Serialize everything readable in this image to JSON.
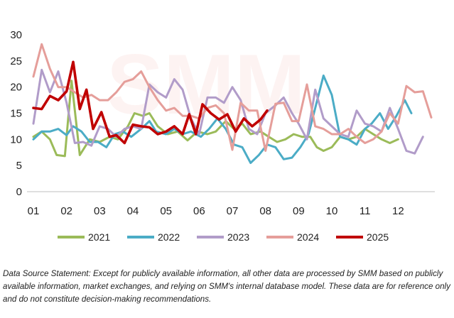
{
  "chart_data": {
    "type": "line",
    "title": "",
    "xlabel": "",
    "ylabel": "",
    "ylim": [
      0,
      30
    ],
    "yticks": [
      0,
      5,
      10,
      15,
      20,
      25,
      30
    ],
    "xlim": [
      1,
      13
    ],
    "xticks": [
      "01",
      "02",
      "03",
      "04",
      "05",
      "06",
      "07",
      "08",
      "09",
      "10",
      "11",
      "12"
    ],
    "grid": false,
    "legend_position": "bottom",
    "series": [
      {
        "name": "2021",
        "color": "#9bbb59",
        "points": [
          [
            1.0,
            10.5
          ],
          [
            1.25,
            11.5
          ],
          [
            1.5,
            10.0
          ],
          [
            1.7,
            7.0
          ],
          [
            1.95,
            6.8
          ],
          [
            2.15,
            21.2
          ],
          [
            2.4,
            7.0
          ],
          [
            2.7,
            10.0
          ],
          [
            3.0,
            9.5
          ],
          [
            3.3,
            10.5
          ],
          [
            3.55,
            10.0
          ],
          [
            3.85,
            12.5
          ],
          [
            4.05,
            15.0
          ],
          [
            4.3,
            14.5
          ],
          [
            4.5,
            15.0
          ],
          [
            4.75,
            12.5
          ],
          [
            5.05,
            11.0
          ],
          [
            5.35,
            11.5
          ],
          [
            5.65,
            9.8
          ],
          [
            5.95,
            11.5
          ],
          [
            6.25,
            11.0
          ],
          [
            6.5,
            11.5
          ],
          [
            6.8,
            13.5
          ],
          [
            7.05,
            12.0
          ],
          [
            7.3,
            13.0
          ],
          [
            7.55,
            11.0
          ],
          [
            7.85,
            11.5
          ],
          [
            8.1,
            10.5
          ],
          [
            8.35,
            9.5
          ],
          [
            8.6,
            10.0
          ],
          [
            8.85,
            11.0
          ],
          [
            9.1,
            10.5
          ],
          [
            9.35,
            10.5
          ],
          [
            9.55,
            8.5
          ],
          [
            9.75,
            7.8
          ],
          [
            10.0,
            8.5
          ],
          [
            10.25,
            10.5
          ],
          [
            10.5,
            10.0
          ],
          [
            10.75,
            10.5
          ],
          [
            11.0,
            12.0
          ],
          [
            11.25,
            11.0
          ],
          [
            11.5,
            10.0
          ],
          [
            11.75,
            9.3
          ],
          [
            12.0,
            10.0
          ]
        ]
      },
      {
        "name": "2022",
        "color": "#4bacc6",
        "points": [
          [
            1.0,
            10.0
          ],
          [
            1.25,
            11.5
          ],
          [
            1.5,
            11.5
          ],
          [
            1.75,
            12.0
          ],
          [
            2.0,
            10.8
          ],
          [
            2.2,
            12.5
          ],
          [
            2.45,
            11.5
          ],
          [
            2.7,
            9.5
          ],
          [
            2.95,
            9.5
          ],
          [
            3.2,
            8.5
          ],
          [
            3.45,
            11.0
          ],
          [
            3.7,
            11.5
          ],
          [
            3.95,
            10.5
          ],
          [
            4.25,
            12.0
          ],
          [
            4.5,
            13.5
          ],
          [
            4.7,
            11.5
          ],
          [
            5.0,
            11.0
          ],
          [
            5.25,
            12.0
          ],
          [
            5.5,
            11.0
          ],
          [
            5.75,
            11.5
          ],
          [
            6.05,
            10.5
          ],
          [
            6.3,
            12.0
          ],
          [
            6.55,
            14.0
          ],
          [
            6.8,
            12.0
          ],
          [
            7.05,
            9.0
          ],
          [
            7.3,
            8.5
          ],
          [
            7.55,
            5.5
          ],
          [
            7.8,
            7.0
          ],
          [
            8.05,
            9.0
          ],
          [
            8.3,
            8.5
          ],
          [
            8.55,
            6.2
          ],
          [
            8.8,
            6.5
          ],
          [
            9.05,
            8.5
          ],
          [
            9.3,
            11.0
          ],
          [
            9.5,
            16.0
          ],
          [
            9.75,
            22.2
          ],
          [
            10.0,
            18.5
          ],
          [
            10.25,
            10.5
          ],
          [
            10.5,
            10.0
          ],
          [
            10.75,
            9.0
          ],
          [
            11.0,
            12.0
          ],
          [
            11.2,
            13.0
          ],
          [
            11.45,
            15.0
          ],
          [
            11.7,
            12.0
          ],
          [
            11.95,
            14.5
          ],
          [
            12.2,
            17.5
          ],
          [
            12.4,
            15.0
          ]
        ]
      },
      {
        "name": "2023",
        "color": "#b19cc9",
        "points": [
          [
            1.0,
            13.0
          ],
          [
            1.25,
            23.3
          ],
          [
            1.5,
            19.0
          ],
          [
            1.75,
            23.0
          ],
          [
            2.0,
            17.0
          ],
          [
            2.25,
            9.3
          ],
          [
            2.5,
            9.5
          ],
          [
            2.75,
            8.8
          ],
          [
            3.0,
            12.5
          ],
          [
            3.25,
            12.0
          ],
          [
            3.5,
            10.5
          ],
          [
            3.75,
            12.0
          ],
          [
            4.0,
            12.5
          ],
          [
            4.25,
            12.0
          ],
          [
            4.5,
            20.5
          ],
          [
            4.75,
            19.0
          ],
          [
            5.0,
            18.0
          ],
          [
            5.25,
            21.5
          ],
          [
            5.5,
            19.5
          ],
          [
            5.75,
            14.0
          ],
          [
            6.0,
            11.0
          ],
          [
            6.25,
            18.0
          ],
          [
            6.5,
            18.0
          ],
          [
            6.75,
            17.0
          ],
          [
            7.0,
            20.0
          ],
          [
            7.25,
            17.5
          ],
          [
            7.5,
            12.0
          ],
          [
            7.75,
            11.0
          ],
          [
            8.0,
            15.0
          ],
          [
            8.3,
            16.5
          ],
          [
            8.55,
            18.0
          ],
          [
            8.8,
            15.0
          ],
          [
            9.0,
            13.0
          ],
          [
            9.25,
            10.0
          ],
          [
            9.5,
            19.5
          ],
          [
            9.75,
            14.0
          ],
          [
            10.0,
            12.5
          ],
          [
            10.25,
            11.0
          ],
          [
            10.5,
            10.5
          ],
          [
            10.75,
            15.5
          ],
          [
            11.0,
            13.0
          ],
          [
            11.25,
            12.5
          ],
          [
            11.5,
            11.5
          ],
          [
            11.75,
            16.0
          ],
          [
            12.0,
            12.0
          ],
          [
            12.25,
            7.8
          ],
          [
            12.5,
            7.3
          ],
          [
            12.75,
            10.5
          ]
        ]
      },
      {
        "name": "2024",
        "color": "#e59e9a",
        "points": [
          [
            1.0,
            22.0
          ],
          [
            1.25,
            28.2
          ],
          [
            1.5,
            23.5
          ],
          [
            1.75,
            20.0
          ],
          [
            2.0,
            20.0
          ],
          [
            2.25,
            19.0
          ],
          [
            2.5,
            18.0
          ],
          [
            2.75,
            18.5
          ],
          [
            3.0,
            17.5
          ],
          [
            3.25,
            17.5
          ],
          [
            3.5,
            19.0
          ],
          [
            3.75,
            21.0
          ],
          [
            4.0,
            21.5
          ],
          [
            4.25,
            23.0
          ],
          [
            4.5,
            20.0
          ],
          [
            4.75,
            17.5
          ],
          [
            5.0,
            15.5
          ],
          [
            5.25,
            16.0
          ],
          [
            5.5,
            14.5
          ],
          [
            5.75,
            14.5
          ],
          [
            6.0,
            14.0
          ],
          [
            6.25,
            16.0
          ],
          [
            6.5,
            16.5
          ],
          [
            6.75,
            15.0
          ],
          [
            7.0,
            8.0
          ],
          [
            7.25,
            17.0
          ],
          [
            7.5,
            15.5
          ],
          [
            7.75,
            15.5
          ],
          [
            8.0,
            7.8
          ],
          [
            8.3,
            16.8
          ],
          [
            8.55,
            17.0
          ],
          [
            8.8,
            13.5
          ],
          [
            9.0,
            13.5
          ],
          [
            9.25,
            20.5
          ],
          [
            9.5,
            12.5
          ],
          [
            9.75,
            12.0
          ],
          [
            10.0,
            11.0
          ],
          [
            10.25,
            11.0
          ],
          [
            10.5,
            12.0
          ],
          [
            10.75,
            10.5
          ],
          [
            11.0,
            9.3
          ],
          [
            11.25,
            10.0
          ],
          [
            11.5,
            11.5
          ],
          [
            11.75,
            15.0
          ],
          [
            12.0,
            13.0
          ],
          [
            12.25,
            20.2
          ],
          [
            12.5,
            19.0
          ],
          [
            12.75,
            19.2
          ],
          [
            13.0,
            14.2
          ]
        ]
      },
      {
        "name": "2025",
        "color": "#c00000",
        "points": [
          [
            1.0,
            16.0
          ],
          [
            1.25,
            15.8
          ],
          [
            1.5,
            18.3
          ],
          [
            1.75,
            17.5
          ],
          [
            2.0,
            19.2
          ],
          [
            2.2,
            24.8
          ],
          [
            2.4,
            15.8
          ],
          [
            2.6,
            19.5
          ],
          [
            2.8,
            12.0
          ],
          [
            3.05,
            15.2
          ],
          [
            3.3,
            10.5
          ],
          [
            3.5,
            10.8
          ],
          [
            3.75,
            9.3
          ],
          [
            4.0,
            12.8
          ],
          [
            4.25,
            12.5
          ],
          [
            4.5,
            12.3
          ],
          [
            4.75,
            11.0
          ],
          [
            5.0,
            11.5
          ],
          [
            5.25,
            12.5
          ],
          [
            5.5,
            11.0
          ],
          [
            5.7,
            14.8
          ],
          [
            5.9,
            11.0
          ],
          [
            6.1,
            16.7
          ],
          [
            6.35,
            15.0
          ],
          [
            6.6,
            13.8
          ],
          [
            6.85,
            14.8
          ],
          [
            7.1,
            11.5
          ],
          [
            7.35,
            14.0
          ],
          [
            7.6,
            12.5
          ],
          [
            7.85,
            13.8
          ],
          [
            8.05,
            15.5
          ]
        ]
      }
    ]
  },
  "note": {
    "text": "Data Source Statement: Except for publicly available information, all other data are processed by SMM based on publicly available information, market exchanges, and relying on SMM's internal database model. These data are for reference only and do not constitute decision-making recommendations."
  }
}
